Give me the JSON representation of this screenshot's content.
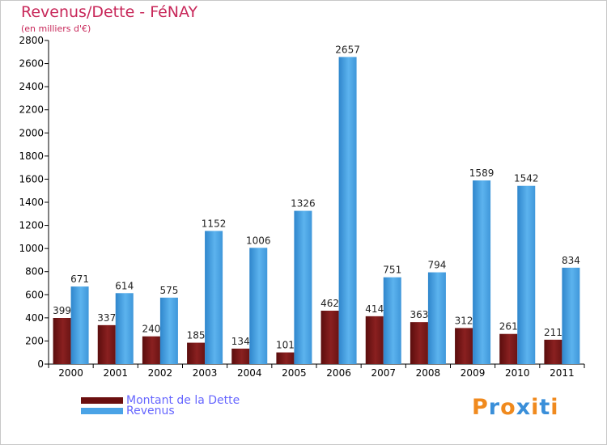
{
  "header": {
    "title": "Revenus/Dette - FéNAY",
    "subtitle": "(en milliers d'€)"
  },
  "chart_data": {
    "type": "bar",
    "categories": [
      "2000",
      "2001",
      "2002",
      "2003",
      "2004",
      "2005",
      "2006",
      "2007",
      "2008",
      "2009",
      "2010",
      "2011"
    ],
    "series": [
      {
        "name": "Montant de la Dette",
        "color": "#7a1a1a",
        "values": [
          399,
          337,
          240,
          185,
          134,
          101,
          462,
          414,
          363,
          312,
          261,
          211
        ]
      },
      {
        "name": "Revenus",
        "color": "#4aa3e6",
        "values": [
          671,
          614,
          575,
          1152,
          1006,
          1326,
          2657,
          751,
          794,
          1589,
          1542,
          834
        ]
      }
    ],
    "ylim": [
      0,
      2800
    ],
    "yticks": [
      "0",
      "200",
      "400",
      "600",
      "800",
      "1000",
      "1200",
      "1400",
      "1600",
      "1800",
      "2000",
      "2200",
      "2400",
      "2600",
      "2800"
    ],
    "grid": false,
    "legend_position": "bottom-left"
  },
  "legend": [
    {
      "label": "Montant de la Dette",
      "color": "#6b0f0f"
    },
    {
      "label": "Revenus",
      "color": "#4aa3e6"
    }
  ],
  "logo": {
    "text": "Proxiti",
    "letter_colors": [
      "#f08a1e",
      "#3a8fd9",
      "#f08a1e",
      "#3a8fd9",
      "#f08a1e",
      "#3a8fd9",
      "#f08a1e"
    ]
  }
}
